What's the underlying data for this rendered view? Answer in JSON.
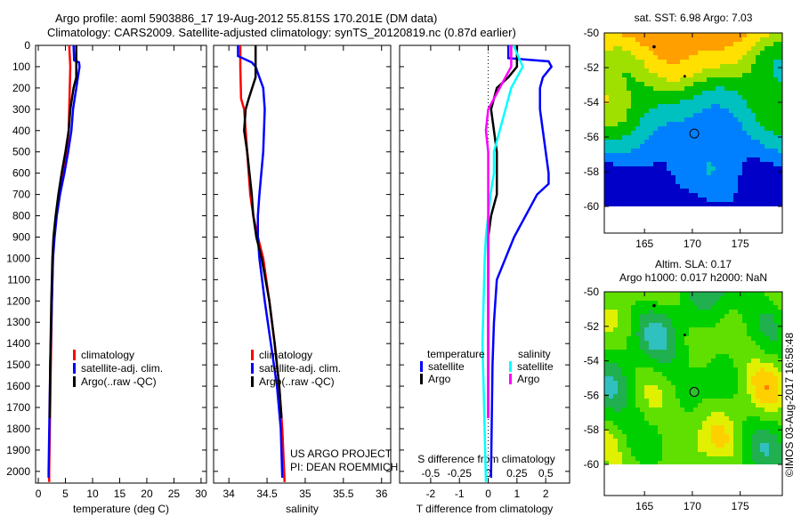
{
  "title": {
    "line1": "Argo profile: aoml 5903886_17 19-Aug-2012 55.815S 170.201E (DM data)",
    "line2": "Climatology: CARS2009. Satellite-adjusted climatology: synTS_20120819.nc (0.87d earlier)"
  },
  "credit": "US ARGO PROJECT",
  "pi": "PI: DEAN ROEMMICH",
  "stamp": "©IMOS 03-Aug-2017 16:58:48",
  "colors": {
    "climatology": "#ff0000",
    "satellite": "#0000ff",
    "argo": "#000000",
    "s_satellite": "#00ffff",
    "s_argo": "#ff00ff"
  },
  "chart_data": [
    {
      "type": "line",
      "id": "temperature",
      "xlabel": "temperature (deg C)",
      "ylabel": "depth",
      "xlim": [
        -0.5,
        31
      ],
      "ylim": [
        0,
        2055
      ],
      "xticks": [
        0,
        5,
        10,
        15,
        20,
        25,
        30
      ],
      "yticks": [
        0,
        100,
        200,
        300,
        400,
        500,
        600,
        700,
        800,
        900,
        1000,
        1100,
        1200,
        1300,
        1400,
        1500,
        1600,
        1700,
        1800,
        1900,
        2000
      ],
      "legend": [
        "climatology",
        "satellite-adj. clim.",
        "Argo(..raw -QC)"
      ],
      "series": [
        {
          "name": "climatology",
          "color": "#ff0000",
          "depth": [
            0,
            100,
            200,
            300,
            400,
            500,
            600,
            700,
            800,
            900,
            1000,
            1200,
            1500,
            2000,
            2050
          ],
          "values": [
            5.7,
            5.9,
            5.8,
            5.7,
            5.6,
            5.2,
            4.6,
            3.9,
            3.3,
            2.9,
            2.7,
            2.5,
            2.3,
            2.0,
            2.0
          ]
        },
        {
          "name": "satellite-adj. clim.",
          "color": "#0000ff",
          "depth": [
            0,
            70,
            80,
            100,
            150,
            200,
            300,
            400,
            500,
            600,
            700,
            800,
            900,
            1000,
            1200,
            1500,
            2000,
            2030
          ],
          "values": [
            6.5,
            6.6,
            7.5,
            7.6,
            7.3,
            7.0,
            6.4,
            6.1,
            5.5,
            4.8,
            4.0,
            3.4,
            3.0,
            2.7,
            2.5,
            2.2,
            1.9,
            1.9
          ]
        },
        {
          "name": "Argo(..raw -QC)",
          "color": "#000000",
          "depth": [
            0,
            150,
            200,
            300,
            400,
            500,
            600,
            700,
            800,
            900,
            1000,
            1200,
            1500,
            1750
          ],
          "values": [
            7.0,
            7.0,
            6.5,
            5.9,
            5.6,
            5.0,
            4.3,
            3.7,
            3.2,
            2.8,
            2.6,
            2.4,
            2.2,
            2.1
          ]
        }
      ]
    },
    {
      "type": "line",
      "id": "salinity",
      "xlabel": "salinity",
      "xlim": [
        33.8,
        36.12
      ],
      "ylim": [
        0,
        2055
      ],
      "xticks": [
        34,
        34.5,
        35,
        35.5,
        36
      ],
      "legend": [
        "climatology",
        "satellite-adj. clim.",
        "Argo(..raw -QC)"
      ],
      "series": [
        {
          "name": "climatology",
          "color": "#ff0000",
          "depth": [
            0,
            100,
            250,
            300,
            400,
            500,
            600,
            700,
            800,
            900,
            1000,
            1200,
            1400,
            1600,
            1800,
            2050
          ],
          "values": [
            34.15,
            34.15,
            34.16,
            34.2,
            34.22,
            34.24,
            34.26,
            34.28,
            34.32,
            34.38,
            34.45,
            34.53,
            34.6,
            34.66,
            34.7,
            34.73
          ]
        },
        {
          "name": "satellite-adj. clim.",
          "color": "#0000ff",
          "depth": [
            0,
            50,
            80,
            100,
            200,
            300,
            500,
            700,
            800,
            900,
            1000,
            1200,
            1400,
            1600,
            1800,
            2030
          ],
          "values": [
            34.12,
            34.12,
            34.3,
            34.35,
            34.45,
            34.47,
            34.45,
            34.4,
            34.38,
            34.38,
            34.4,
            34.47,
            34.55,
            34.63,
            34.68,
            34.7
          ]
        },
        {
          "name": "Argo(..raw -QC)",
          "color": "#000000",
          "depth": [
            0,
            150,
            250,
            300,
            400,
            500,
            600,
            700,
            800,
            900,
            1000,
            1200,
            1400,
            1600,
            1750
          ],
          "values": [
            34.35,
            34.35,
            34.26,
            34.22,
            34.2,
            34.24,
            34.27,
            34.3,
            34.32,
            34.36,
            34.43,
            34.53,
            34.6,
            34.66,
            34.69
          ]
        }
      ]
    },
    {
      "type": "line",
      "id": "difference",
      "xlabel": "T difference from climatology",
      "x2label": "S difference from climatology",
      "xlim": [
        -3.08,
        2.83
      ],
      "ylim": [
        0,
        2055
      ],
      "xticks": [
        -2,
        -1,
        0,
        1,
        2
      ],
      "x2ticks": [
        -0.5,
        -0.25,
        0,
        0.25,
        0.5
      ],
      "legend": {
        "temperature": "temperature",
        "salinity": "salinity",
        "satellite": "satellite",
        "argo": "Argo"
      },
      "series": [
        {
          "name": "temperature satellite",
          "color": "#0000ff",
          "axis": "T",
          "depth": [
            0,
            60,
            75,
            100,
            150,
            200,
            300,
            400,
            500,
            600,
            650,
            700,
            800,
            900,
            1000,
            1100,
            1300,
            1500,
            2000,
            2030
          ],
          "values": [
            0.7,
            0.7,
            2.1,
            2.2,
            1.9,
            1.8,
            1.8,
            1.9,
            2.0,
            2.1,
            2.1,
            1.7,
            1.3,
            0.9,
            0.6,
            0.3,
            0.2,
            0.15,
            0.1,
            0.1
          ]
        },
        {
          "name": "temperature Argo",
          "color": "#000000",
          "axis": "T",
          "depth": [
            0,
            100,
            150,
            200,
            300,
            400,
            500,
            600,
            700,
            800,
            900,
            1000,
            1200,
            1500,
            1750
          ],
          "values": [
            1.0,
            1.0,
            0.7,
            0.3,
            0.1,
            0.2,
            0.3,
            0.3,
            0.3,
            0.1,
            0.0,
            0.0,
            0.0,
            0.0,
            0.0
          ]
        },
        {
          "name": "salinity satellite",
          "color": "#00ffff",
          "axis": "S",
          "depth": [
            0,
            100,
            200,
            300,
            400,
            500,
            600,
            700,
            800,
            900,
            1000,
            1200,
            1400,
            1600,
            2050
          ],
          "values": [
            0.22,
            0.3,
            0.2,
            0.15,
            0.1,
            0.05,
            0.05,
            0.02,
            0.0,
            -0.02,
            -0.03,
            -0.04,
            -0.05,
            -0.04,
            -0.02
          ]
        },
        {
          "name": "salinity Argo",
          "color": "#ff00ff",
          "axis": "S",
          "depth": [
            0,
            100,
            200,
            300,
            400,
            500,
            700,
            1000,
            1300,
            1750
          ],
          "values": [
            0.2,
            0.2,
            0.1,
            0.0,
            -0.02,
            0.0,
            0.0,
            0.0,
            0.0,
            0.0
          ]
        }
      ]
    },
    {
      "type": "heatmap",
      "id": "sst_map",
      "title": "sat. SST: 6.98 Argo: 7.03",
      "xlim": [
        160.8,
        179.4
      ],
      "ylim": [
        -62.7,
        -50
      ],
      "xticks": [
        165,
        170,
        175
      ],
      "yticks": [
        -50,
        -52,
        -54,
        -56,
        -58,
        -60
      ],
      "argo_position": [
        170.2,
        -55.8
      ]
    },
    {
      "type": "heatmap",
      "id": "sla_map",
      "title": "Altim. SLA: 0.17",
      "subtitle": "Argo h1000: 0.017 h2000: NaN",
      "xlim": [
        160.8,
        179.4
      ],
      "ylim": [
        -62.7,
        -50
      ],
      "xticks": [
        165,
        170,
        175
      ],
      "yticks": [
        -50,
        -52,
        -54,
        -56,
        -58,
        -60
      ],
      "argo_position": [
        170.2,
        -55.8
      ]
    }
  ]
}
